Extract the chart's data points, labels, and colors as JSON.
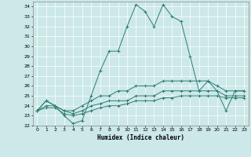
{
  "xlabel": "Humidex (Indice chaleur)",
  "background_color": "#cce8e8",
  "line_color": "#2e7d72",
  "xlim": [
    -0.5,
    23.5
  ],
  "ylim": [
    22,
    34.5
  ],
  "yticks": [
    22,
    23,
    24,
    25,
    26,
    27,
    28,
    29,
    30,
    31,
    32,
    33,
    34
  ],
  "xticks": [
    0,
    1,
    2,
    3,
    4,
    5,
    6,
    7,
    8,
    9,
    10,
    11,
    12,
    13,
    14,
    15,
    16,
    17,
    18,
    19,
    20,
    21,
    22,
    23
  ],
  "series": [
    [
      23.5,
      24.5,
      24.0,
      23.0,
      22.2,
      22.5,
      25.0,
      27.5,
      29.5,
      29.5,
      32.0,
      34.2,
      33.5,
      32.0,
      34.2,
      33.0,
      32.5,
      29.0,
      25.5,
      26.5,
      25.5,
      23.5,
      25.5,
      25.5
    ],
    [
      23.5,
      24.5,
      24.0,
      23.5,
      23.5,
      24.0,
      24.5,
      25.0,
      25.0,
      25.5,
      25.5,
      26.0,
      26.0,
      26.0,
      26.5,
      26.5,
      26.5,
      26.5,
      26.5,
      26.5,
      26.0,
      25.5,
      25.5,
      25.5
    ],
    [
      23.5,
      24.0,
      24.0,
      23.5,
      23.2,
      23.5,
      24.0,
      24.2,
      24.5,
      24.5,
      24.5,
      25.0,
      25.0,
      25.0,
      25.5,
      25.5,
      25.5,
      25.5,
      25.5,
      25.5,
      25.5,
      25.0,
      25.0,
      25.0
    ],
    [
      23.5,
      23.8,
      23.8,
      23.2,
      23.0,
      23.2,
      23.5,
      23.8,
      24.0,
      24.0,
      24.2,
      24.5,
      24.5,
      24.5,
      24.8,
      24.8,
      25.0,
      25.0,
      25.0,
      25.0,
      25.0,
      24.8,
      24.8,
      24.8
    ]
  ]
}
